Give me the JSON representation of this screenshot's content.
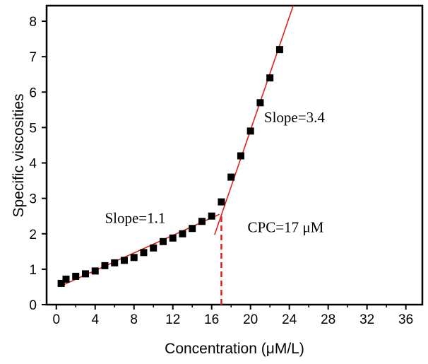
{
  "chart_data": {
    "type": "scatter",
    "title": "",
    "xlabel": "Concentration (μM/L)",
    "ylabel": "Specific viscosities",
    "xlim": [
      -1,
      37.7
    ],
    "ylim": [
      0,
      8.44
    ],
    "xticks": [
      0,
      4,
      8,
      12,
      16,
      20,
      24,
      28,
      32,
      36
    ],
    "yticks": [
      0,
      1,
      2,
      3,
      4,
      5,
      6,
      7,
      8
    ],
    "grid": false,
    "series": [
      {
        "name": "data",
        "marker": "square",
        "color": "#000000",
        "x": [
          0.5,
          1,
          2,
          3,
          4,
          5,
          6,
          7,
          8,
          9,
          10,
          11,
          12,
          13,
          14,
          15,
          16,
          17,
          18,
          19,
          20,
          21,
          22,
          23
        ],
        "y": [
          0.6,
          0.72,
          0.8,
          0.87,
          0.95,
          1.1,
          1.18,
          1.25,
          1.33,
          1.47,
          1.6,
          1.78,
          1.88,
          2.0,
          2.15,
          2.35,
          2.5,
          2.9,
          3.6,
          4.2,
          4.9,
          5.7,
          6.4,
          7.2
        ]
      }
    ],
    "fit_lines": [
      {
        "name": "low fit",
        "color": "#e0201b",
        "x": [
          0.5,
          16.8
        ],
        "y": [
          0.53,
          2.55
        ]
      },
      {
        "name": "high fit",
        "color": "#e0201b",
        "x": [
          16.3,
          24.4
        ],
        "y": [
          1.97,
          8.44
        ]
      }
    ],
    "cpc_line": {
      "x": 17,
      "y": [
        0,
        2.55
      ],
      "color": "#e0201b"
    },
    "annotations": {
      "slope_low": {
        "text": "Slope=1.1",
        "x": 5,
        "y": 2.3
      },
      "slope_high": {
        "text": "Slope=3.4",
        "x": 21.4,
        "y": 5.15
      },
      "cpc": {
        "text": "CPC=17 μM",
        "x": 19.7,
        "y": 2.05
      }
    }
  }
}
